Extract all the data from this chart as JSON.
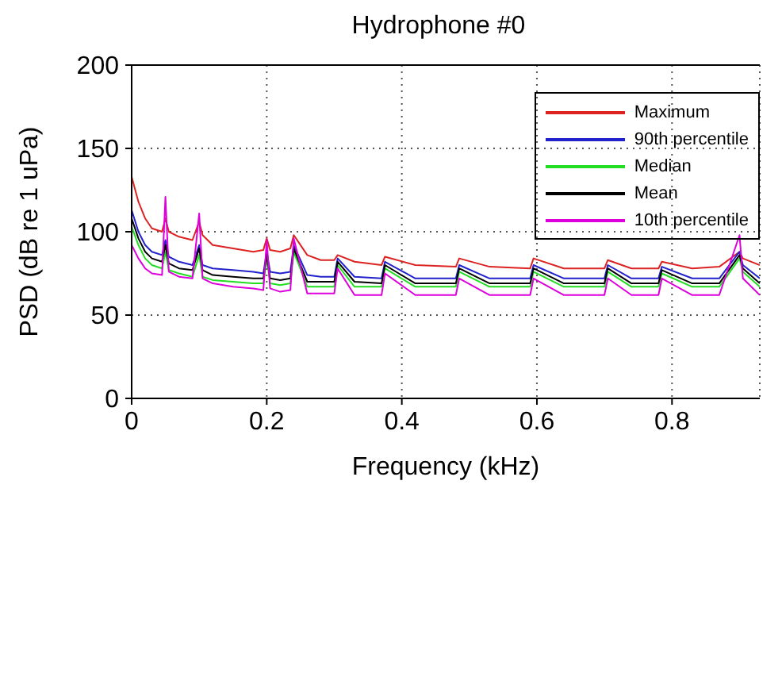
{
  "chart_data": {
    "type": "line",
    "title": "Hydrophone #0",
    "xlabel": "Frequency (kHz)",
    "ylabel": "PSD (dB re 1 uPa)",
    "x": [
      0,
      0.01,
      0.02,
      0.03,
      0.045,
      0.05,
      0.055,
      0.07,
      0.09,
      0.1,
      0.105,
      0.12,
      0.15,
      0.18,
      0.195,
      0.2,
      0.205,
      0.22,
      0.235,
      0.24,
      0.26,
      0.28,
      0.3,
      0.305,
      0.33,
      0.37,
      0.375,
      0.42,
      0.48,
      0.485,
      0.53,
      0.59,
      0.595,
      0.64,
      0.7,
      0.705,
      0.74,
      0.78,
      0.785,
      0.83,
      0.87,
      0.9,
      0.905,
      0.93
    ],
    "series": [
      {
        "name": "Maximum",
        "color": "#dd2222",
        "values": [
          133,
          118,
          108,
          102,
          100,
          108,
          100,
          97,
          95,
          106,
          98,
          92,
          90,
          88,
          89,
          96,
          89,
          88,
          90,
          98,
          86,
          83,
          83,
          86,
          82,
          80,
          85,
          80,
          79,
          84,
          79,
          78,
          84,
          78,
          78,
          83,
          78,
          78,
          82,
          78,
          79,
          88,
          84,
          80
        ]
      },
      {
        "name": "90th percentile",
        "color": "#2222cc",
        "values": [
          113,
          100,
          92,
          88,
          86,
          95,
          85,
          82,
          80,
          92,
          80,
          78,
          77,
          76,
          75,
          88,
          76,
          75,
          76,
          92,
          74,
          73,
          73,
          84,
          73,
          72,
          82,
          72,
          72,
          80,
          72,
          72,
          80,
          72,
          72,
          80,
          72,
          72,
          79,
          72,
          72,
          88,
          80,
          72
        ]
      },
      {
        "name": "Median",
        "color": "#22dd22",
        "values": [
          103,
          92,
          84,
          80,
          78,
          88,
          77,
          75,
          73,
          86,
          73,
          71,
          70,
          69,
          69,
          84,
          69,
          68,
          69,
          88,
          67,
          67,
          67,
          80,
          67,
          67,
          78,
          67,
          67,
          76,
          67,
          67,
          76,
          67,
          67,
          76,
          67,
          67,
          75,
          67,
          67,
          84,
          76,
          67
        ]
      },
      {
        "name": "Mean",
        "color": "#000000",
        "values": [
          108,
          96,
          88,
          84,
          82,
          92,
          81,
          78,
          77,
          90,
          77,
          74,
          73,
          72,
          72,
          86,
          72,
          71,
          72,
          90,
          70,
          70,
          70,
          82,
          70,
          69,
          80,
          69,
          69,
          78,
          69,
          69,
          78,
          69,
          69,
          78,
          69,
          69,
          77,
          69,
          69,
          86,
          78,
          69
        ]
      },
      {
        "name": "10th percentile",
        "color": "#dd00dd",
        "values": [
          92,
          84,
          78,
          75,
          74,
          121,
          76,
          73,
          72,
          111,
          72,
          69,
          67,
          66,
          65,
          95,
          66,
          64,
          65,
          96,
          63,
          63,
          63,
          78,
          62,
          62,
          75,
          62,
          62,
          72,
          62,
          62,
          72,
          62,
          62,
          72,
          62,
          62,
          72,
          62,
          62,
          98,
          72,
          62
        ]
      }
    ],
    "xlim": [
      0,
      0.93
    ],
    "xticks": [
      0,
      0.2,
      0.4,
      0.6,
      0.8
    ],
    "ylim": [
      0,
      200
    ],
    "yticks": [
      0,
      50,
      100,
      150,
      200
    ],
    "grid": true,
    "legend": "top right",
    "line_style": "solid"
  }
}
